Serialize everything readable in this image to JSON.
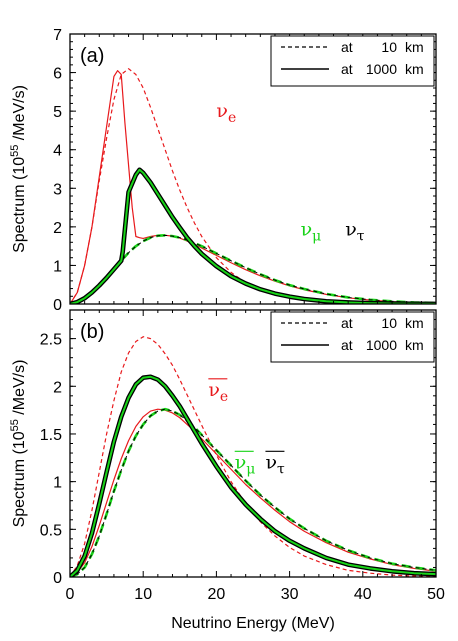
{
  "chart_data": [
    {
      "type": "line",
      "panel_label": "(a)",
      "xlabel": "",
      "ylabel": "Spectrum (10",
      "ylabel_exp": "55",
      "ylabel_unit": " /MeV/s)",
      "xlim": [
        0,
        50
      ],
      "ylim": [
        0,
        7
      ],
      "x_ticks": [
        "0",
        "10",
        "20",
        "30",
        "40",
        "50"
      ],
      "y_ticks": [
        "0",
        "1",
        "2",
        "3",
        "4",
        "5",
        "6",
        "7"
      ],
      "y_tick_values": [
        0,
        1,
        2,
        3,
        4,
        5,
        6,
        7
      ],
      "legend": {
        "placement": "top-right",
        "entries": [
          {
            "style": "dashed",
            "prefix": "at",
            "num": "10",
            "unit": "km"
          },
          {
            "style": "solid",
            "prefix": "at",
            "num": "1000",
            "unit": "km"
          }
        ]
      },
      "annotations": [
        {
          "base": "ν",
          "sub": "e",
          "bar": false,
          "color": "#e8191c",
          "x": 20,
          "y": 4.85
        },
        {
          "base": "ν",
          "sub": "μ",
          "bar": false,
          "color": "#18d318",
          "x": 31.5,
          "y": 1.78
        },
        {
          "base": "ν",
          "sub": "τ",
          "bar": false,
          "color": "#000000",
          "x": 37.6,
          "y": 1.78
        }
      ],
      "series": [
        {
          "color": "#e8191c",
          "style": "dashed",
          "width": 1.2,
          "x": [
            0,
            1,
            2,
            3,
            4,
            5,
            6,
            7,
            8,
            9,
            10,
            11,
            12,
            13,
            14,
            15,
            16,
            17,
            18,
            20,
            22,
            24,
            26,
            28,
            30,
            32,
            35,
            38,
            41,
            44,
            47,
            50
          ],
          "y": [
            0,
            0.3,
            1.0,
            2.0,
            3.2,
            4.3,
            5.3,
            5.95,
            6.1,
            5.95,
            5.6,
            5.1,
            4.55,
            4.0,
            3.45,
            2.95,
            2.5,
            2.1,
            1.75,
            1.2,
            0.82,
            0.55,
            0.37,
            0.24,
            0.16,
            0.1,
            0.05,
            0.025,
            0.012,
            0.006,
            0.003,
            0.001
          ]
        },
        {
          "color": "#e8191c",
          "style": "solid",
          "width": 1.2,
          "x": [
            0,
            1,
            2,
            3,
            4,
            5,
            6,
            6.5,
            7.0,
            7.5,
            8,
            8.5,
            9,
            9.5,
            10,
            11,
            12,
            13,
            14,
            15,
            16,
            17,
            18,
            20,
            22,
            24,
            26,
            28,
            30,
            32,
            35,
            38,
            41,
            44,
            47,
            50
          ],
          "y": [
            0,
            0.3,
            1.0,
            2.0,
            3.3,
            4.6,
            5.9,
            6.05,
            5.95,
            4.7,
            3.6,
            2.5,
            1.75,
            1.72,
            1.7,
            1.75,
            1.78,
            1.78,
            1.76,
            1.71,
            1.63,
            1.55,
            1.45,
            1.26,
            1.07,
            0.89,
            0.73,
            0.59,
            0.47,
            0.37,
            0.25,
            0.16,
            0.1,
            0.06,
            0.035,
            0.02
          ]
        },
        {
          "color": "#18d318",
          "style": "dashed",
          "width": 2.6,
          "x": [
            0,
            1,
            2,
            3,
            4,
            5,
            6,
            7,
            8,
            9,
            10,
            11,
            12,
            13,
            14,
            15,
            16,
            17,
            18,
            20,
            22,
            24,
            26,
            28,
            30,
            32,
            35,
            38,
            41,
            44,
            47,
            50
          ],
          "y": [
            0,
            0.05,
            0.15,
            0.3,
            0.48,
            0.68,
            0.9,
            1.12,
            1.33,
            1.5,
            1.63,
            1.72,
            1.77,
            1.78,
            1.76,
            1.72,
            1.66,
            1.58,
            1.5,
            1.31,
            1.12,
            0.94,
            0.77,
            0.62,
            0.49,
            0.39,
            0.26,
            0.17,
            0.11,
            0.07,
            0.04,
            0.025
          ]
        },
        {
          "color": "#000000",
          "style": "dashed",
          "width": 1.0,
          "x": [
            0,
            1,
            2,
            3,
            4,
            5,
            6,
            7,
            8,
            9,
            10,
            11,
            12,
            13,
            14,
            15,
            16,
            17,
            18,
            20,
            22,
            24,
            26,
            28,
            30,
            32,
            35,
            38,
            41,
            44,
            47,
            50
          ],
          "y": [
            0,
            0.05,
            0.15,
            0.3,
            0.48,
            0.68,
            0.9,
            1.12,
            1.33,
            1.5,
            1.63,
            1.72,
            1.77,
            1.78,
            1.76,
            1.72,
            1.66,
            1.58,
            1.5,
            1.31,
            1.12,
            0.94,
            0.77,
            0.62,
            0.49,
            0.39,
            0.26,
            0.17,
            0.11,
            0.07,
            0.04,
            0.025
          ]
        },
        {
          "color": "#000000",
          "style": "solid",
          "width": 4.6,
          "x": [
            0,
            1,
            2,
            3,
            4,
            5,
            6,
            7,
            7.2,
            8,
            9,
            9.5,
            10,
            11,
            12,
            13,
            14,
            15,
            16,
            17,
            18,
            20,
            22,
            24,
            26,
            28,
            30,
            32,
            35,
            38,
            41,
            44,
            47,
            50
          ],
          "y": [
            0,
            0.05,
            0.15,
            0.3,
            0.48,
            0.68,
            0.9,
            1.12,
            1.35,
            2.9,
            3.35,
            3.48,
            3.4,
            3.15,
            2.85,
            2.55,
            2.25,
            1.98,
            1.72,
            1.5,
            1.3,
            0.98,
            0.72,
            0.53,
            0.38,
            0.27,
            0.19,
            0.13,
            0.07,
            0.04,
            0.02,
            0.01,
            0.005,
            0.002
          ]
        },
        {
          "color": "#18d318",
          "style": "solid",
          "width": 2.0,
          "x": [
            0,
            1,
            2,
            3,
            4,
            5,
            6,
            7,
            7.2,
            8,
            9,
            9.5,
            10,
            11,
            12,
            13,
            14,
            15,
            16,
            17,
            18,
            20,
            22,
            24,
            26,
            28,
            30,
            32,
            35,
            38,
            41,
            44,
            47,
            50
          ],
          "y": [
            0,
            0.05,
            0.15,
            0.3,
            0.48,
            0.68,
            0.9,
            1.12,
            1.35,
            2.9,
            3.35,
            3.48,
            3.4,
            3.15,
            2.85,
            2.55,
            2.25,
            1.98,
            1.72,
            1.5,
            1.3,
            0.98,
            0.72,
            0.53,
            0.38,
            0.27,
            0.19,
            0.13,
            0.07,
            0.04,
            0.02,
            0.01,
            0.005,
            0.002
          ]
        }
      ]
    },
    {
      "type": "line",
      "panel_label": "(b)",
      "xlabel": "Neutrino Energy (MeV)",
      "ylabel": "Spectrum (10",
      "ylabel_exp": "55",
      "ylabel_unit": " /MeV/s)",
      "xlim": [
        0,
        50
      ],
      "ylim": [
        0,
        2.8
      ],
      "x_ticks": [
        "0",
        "10",
        "20",
        "30",
        "40",
        "50"
      ],
      "y_ticks": [
        "0",
        "0.5",
        "1",
        "1.5",
        "2",
        "2.5"
      ],
      "y_tick_values": [
        0,
        0.5,
        1,
        1.5,
        2,
        2.5
      ],
      "legend": {
        "placement": "top-right",
        "entries": [
          {
            "style": "dashed",
            "prefix": "at",
            "num": "10",
            "unit": "km"
          },
          {
            "style": "solid",
            "prefix": "at",
            "num": "1000",
            "unit": "km"
          }
        ]
      },
      "annotations": [
        {
          "base": "ν",
          "sub": "e",
          "bar": true,
          "color": "#e8191c",
          "x": 18.9,
          "y": 1.9
        },
        {
          "base": "ν",
          "sub": "μ",
          "bar": true,
          "color": "#18d318",
          "x": 22.5,
          "y": 1.14
        },
        {
          "base": "ν",
          "sub": "τ",
          "bar": true,
          "color": "#000000",
          "x": 26.7,
          "y": 1.14
        }
      ],
      "series": [
        {
          "color": "#e8191c",
          "style": "dashed",
          "width": 1.2,
          "x": [
            0,
            1,
            2,
            3,
            4,
            5,
            6,
            7,
            8,
            9,
            10,
            11,
            12,
            13,
            14,
            15,
            16,
            17,
            18,
            20,
            22,
            24,
            26,
            28,
            30,
            32,
            35,
            38,
            41,
            44,
            47,
            50
          ],
          "y": [
            0,
            0.12,
            0.35,
            0.7,
            1.1,
            1.5,
            1.85,
            2.15,
            2.35,
            2.47,
            2.52,
            2.5,
            2.44,
            2.34,
            2.22,
            2.07,
            1.91,
            1.75,
            1.59,
            1.28,
            1.0,
            0.77,
            0.58,
            0.43,
            0.31,
            0.22,
            0.13,
            0.07,
            0.04,
            0.02,
            0.01,
            0.005
          ]
        },
        {
          "color": "#e8191c",
          "style": "solid",
          "width": 1.2,
          "x": [
            0,
            1,
            2,
            3,
            4,
            5,
            6,
            7,
            8,
            9,
            10,
            11,
            12,
            13,
            14,
            15,
            16,
            17,
            18,
            20,
            22,
            24,
            26,
            28,
            30,
            32,
            35,
            38,
            41,
            44,
            47,
            50
          ],
          "y": [
            0,
            0.05,
            0.15,
            0.32,
            0.54,
            0.78,
            1.02,
            1.24,
            1.43,
            1.58,
            1.68,
            1.74,
            1.76,
            1.75,
            1.72,
            1.67,
            1.6,
            1.53,
            1.45,
            1.29,
            1.13,
            0.97,
            0.83,
            0.7,
            0.58,
            0.48,
            0.36,
            0.26,
            0.19,
            0.13,
            0.09,
            0.06
          ]
        },
        {
          "color": "#18d318",
          "style": "dashed",
          "width": 2.6,
          "x": [
            0,
            1,
            2,
            3,
            4,
            5,
            6,
            7,
            8,
            9,
            10,
            11,
            12,
            13,
            14,
            15,
            16,
            17,
            18,
            20,
            22,
            24,
            26,
            28,
            30,
            32,
            35,
            38,
            41,
            44,
            47,
            50
          ],
          "y": [
            0,
            0.03,
            0.1,
            0.24,
            0.43,
            0.66,
            0.9,
            1.12,
            1.32,
            1.48,
            1.6,
            1.69,
            1.74,
            1.76,
            1.74,
            1.7,
            1.64,
            1.57,
            1.49,
            1.33,
            1.17,
            1.01,
            0.86,
            0.73,
            0.61,
            0.51,
            0.38,
            0.28,
            0.2,
            0.14,
            0.1,
            0.07
          ]
        },
        {
          "color": "#000000",
          "style": "dashed",
          "width": 1.0,
          "x": [
            0,
            1,
            2,
            3,
            4,
            5,
            6,
            7,
            8,
            9,
            10,
            11,
            12,
            13,
            14,
            15,
            16,
            17,
            18,
            20,
            22,
            24,
            26,
            28,
            30,
            32,
            35,
            38,
            41,
            44,
            47,
            50
          ],
          "y": [
            0,
            0.03,
            0.1,
            0.24,
            0.43,
            0.66,
            0.9,
            1.12,
            1.32,
            1.48,
            1.6,
            1.69,
            1.74,
            1.76,
            1.74,
            1.7,
            1.64,
            1.57,
            1.49,
            1.33,
            1.17,
            1.01,
            0.86,
            0.73,
            0.61,
            0.51,
            0.38,
            0.28,
            0.2,
            0.14,
            0.1,
            0.07
          ]
        },
        {
          "color": "#000000",
          "style": "solid",
          "width": 4.6,
          "x": [
            0,
            1,
            2,
            3,
            4,
            5,
            6,
            7,
            8,
            9,
            10,
            11,
            12,
            13,
            14,
            15,
            16,
            17,
            18,
            20,
            22,
            24,
            26,
            28,
            30,
            32,
            35,
            38,
            41,
            44,
            47,
            50
          ],
          "y": [
            0,
            0.07,
            0.22,
            0.46,
            0.77,
            1.1,
            1.42,
            1.68,
            1.88,
            2.02,
            2.09,
            2.1,
            2.07,
            2.0,
            1.9,
            1.79,
            1.66,
            1.53,
            1.4,
            1.16,
            0.94,
            0.76,
            0.61,
            0.48,
            0.38,
            0.3,
            0.2,
            0.13,
            0.09,
            0.06,
            0.04,
            0.03
          ]
        },
        {
          "color": "#18d318",
          "style": "solid",
          "width": 2.0,
          "x": [
            0,
            1,
            2,
            3,
            4,
            5,
            6,
            7,
            8,
            9,
            10,
            11,
            12,
            13,
            14,
            15,
            16,
            17,
            18,
            20,
            22,
            24,
            26,
            28,
            30,
            32,
            35,
            38,
            41,
            44,
            47,
            50
          ],
          "y": [
            0,
            0.07,
            0.22,
            0.46,
            0.77,
            1.1,
            1.42,
            1.68,
            1.88,
            2.02,
            2.09,
            2.1,
            2.07,
            2.0,
            1.9,
            1.79,
            1.66,
            1.53,
            1.4,
            1.16,
            0.94,
            0.76,
            0.61,
            0.48,
            0.38,
            0.3,
            0.2,
            0.13,
            0.09,
            0.06,
            0.04,
            0.03
          ]
        }
      ]
    }
  ]
}
